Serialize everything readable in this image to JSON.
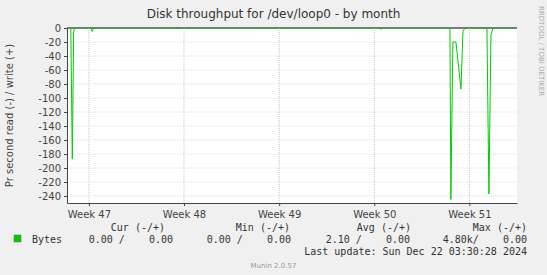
{
  "chart_data": {
    "type": "line",
    "title": "Disk throughput for /dev/loop0 - by month",
    "y_label": "Pr second read (-) / write (+)",
    "x": [
      47.28,
      47.31,
      47.326,
      47.34,
      47.35,
      47.52,
      47.535,
      47.55,
      50.555,
      50.568,
      50.58,
      51.295,
      51.305,
      51.326,
      51.358,
      51.411,
      51.432,
      51.453,
      51.684,
      51.705,
      51.726,
      51.747,
      51.99
    ],
    "series": [
      {
        "name": "Bytes",
        "color": "#00cc00",
        "values": [
          0,
          0,
          -187,
          -5,
          0,
          0,
          -5,
          0,
          0,
          -2,
          0,
          0,
          -245,
          -20,
          -20,
          -87,
          -5,
          0,
          0,
          -237,
          -10,
          0,
          0
        ]
      }
    ],
    "xlim": [
      47.27,
      52.0
    ],
    "ylim": [
      -250,
      0
    ],
    "xticks": [
      {
        "value": 47.5,
        "label": "Week 47"
      },
      {
        "value": 48.5,
        "label": "Week 48"
      },
      {
        "value": 49.5,
        "label": "Week 49"
      },
      {
        "value": 50.5,
        "label": "Week 50"
      },
      {
        "value": 51.5,
        "label": "Week 51"
      }
    ],
    "yticks": [
      0,
      -20,
      -40,
      -60,
      -80,
      -100,
      -120,
      -140,
      -160,
      -180,
      -200,
      -220,
      -240
    ],
    "grid": true,
    "summary": {
      "headers": [
        "Cur (-/+)",
        "Min (-/+)",
        "Avg (-/+)",
        "Max (-/+)"
      ],
      "cells": [
        [
          "0.00 /    0.00",
          "0.00 /    0.00",
          "2.10 /    0.00",
          "4.80k/    0.00"
        ]
      ]
    },
    "last_update": "Last update: Sun Dec 22 03:30:28 2024",
    "credit": "Munin 2.0.57",
    "watermark": "RRDTOOL / TOBI OETIKER"
  }
}
